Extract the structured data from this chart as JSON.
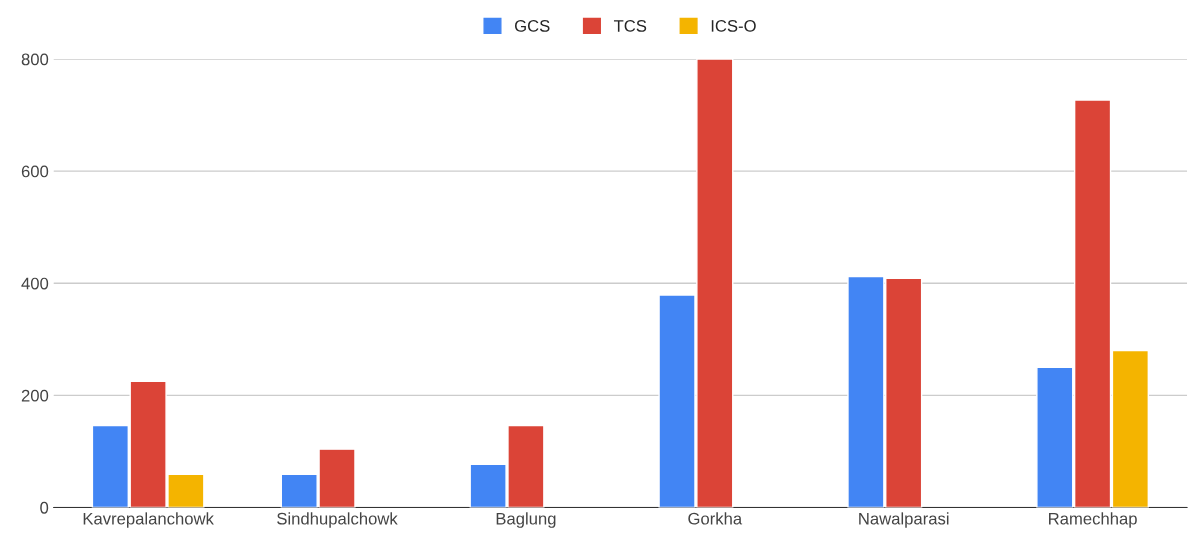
{
  "chart_data": {
    "type": "bar",
    "categories": [
      "Kavrepalanchowk",
      "Sindhupalchowk",
      "Baglung",
      "Gorkha",
      "Nawalparasi",
      "Ramechhap"
    ],
    "series": [
      {
        "name": "GCS",
        "color": "#4285f4",
        "values": [
          146,
          59,
          77,
          379,
          412,
          250
        ]
      },
      {
        "name": "TCS",
        "color": "#db4437",
        "values": [
          225,
          104,
          146,
          800,
          409,
          727
        ]
      },
      {
        "name": "ICS-O",
        "color": "#f4b400",
        "values": [
          59,
          null,
          null,
          null,
          null,
          280
        ]
      }
    ],
    "ylim": [
      0,
      800
    ],
    "yticks": [
      0,
      200,
      400,
      600,
      800
    ],
    "grid": "y",
    "legend": "top"
  }
}
